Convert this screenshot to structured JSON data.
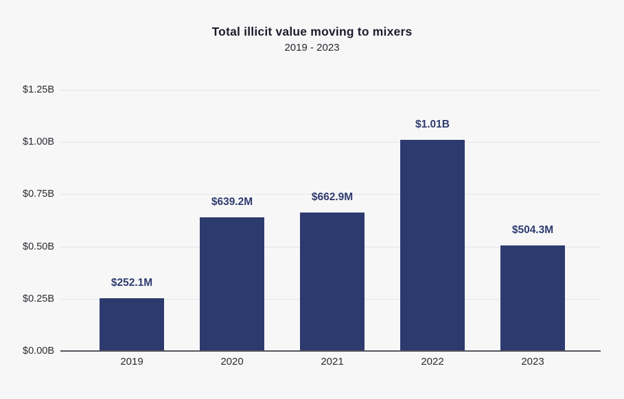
{
  "title": "Total illicit value moving to mixers",
  "subtitle": "2019 - 2023",
  "colors": {
    "background": "#f7f7f8",
    "bar": "#2d3a6e",
    "value_label": "#2e3b6e",
    "title_text": "#1c1d2b",
    "subtitle_text": "#26272f",
    "tick_text": "#2a2b30",
    "gridline": "#e3e4e7",
    "axis_line": "#54555b"
  },
  "chart_data": {
    "type": "bar",
    "title": "Total illicit value moving to mixers",
    "subtitle": "2019 - 2023",
    "categories": [
      "2019",
      "2020",
      "2021",
      "2022",
      "2023"
    ],
    "values": [
      0.2521,
      0.6392,
      0.6629,
      1.01,
      0.5043
    ],
    "value_labels": [
      "$252.1M",
      "$639.2M",
      "$662.9M",
      "$1.01B",
      "$504.3M"
    ],
    "xlabel": "",
    "ylabel": "",
    "ylim": [
      0,
      1.25
    ],
    "yticks": [
      0,
      0.25,
      0.5,
      0.75,
      1.0,
      1.25
    ],
    "ytick_labels": [
      "$0.00B",
      "$0.25B",
      "$0.50B",
      "$0.75B",
      "$1.00B",
      "$1.25B"
    ],
    "grid": true,
    "legend": false
  }
}
